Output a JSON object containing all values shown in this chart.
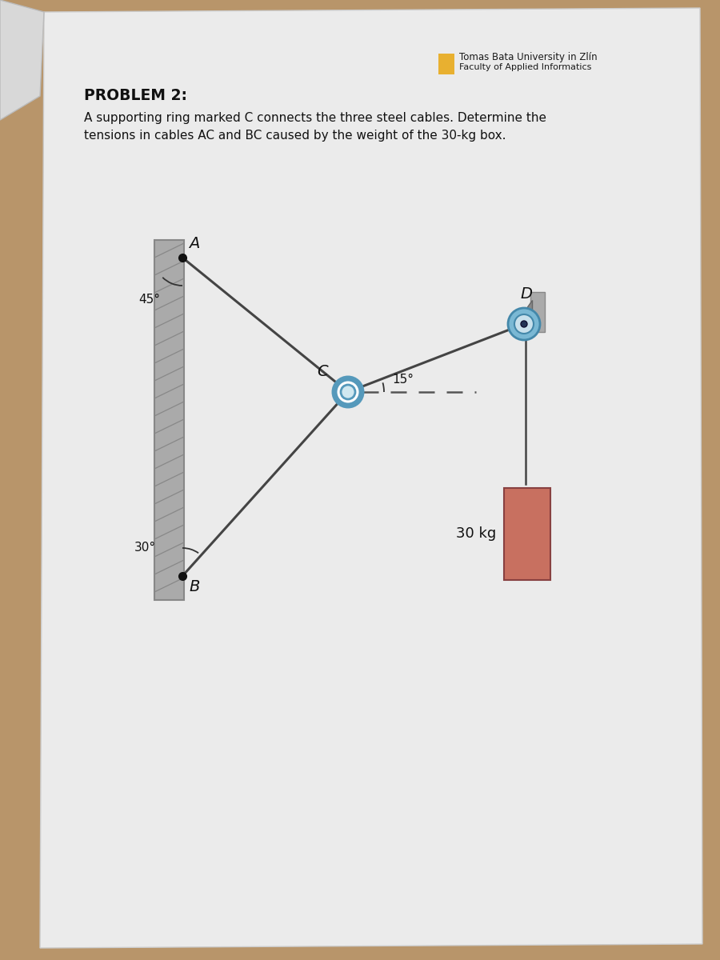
{
  "bg_color": "#b8956a",
  "paper_color": "#eeeeee",
  "title": "PROBLEM 2:",
  "subtitle_line1": "A supporting ring marked C connects the three steel cables. Determine the",
  "subtitle_line2": "tensions in cables AC and BC caused by the weight of the 30-kg box.",
  "univ_name": "Tomas Bata University in Zlín",
  "univ_dept": "Faculty of Applied Informatics",
  "univ_icon_color": "#e8b030",
  "label_A": "A",
  "label_B": "B",
  "label_C": "C",
  "label_D": "D",
  "angle_AC_label": "45°",
  "angle_BC_label": "30°",
  "angle_CD_label": "15°",
  "weight_label": "30 kg",
  "cable_color": "#444444",
  "wall_color_face": "#999999",
  "wall_color_edge": "#777777",
  "ring_color_outer": "#6aaac8",
  "box_color": "#c87060",
  "box_color_edge": "#884040",
  "pulley_color": "#6aaac8",
  "dashed_color": "#555555",
  "dot_color": "#111111"
}
